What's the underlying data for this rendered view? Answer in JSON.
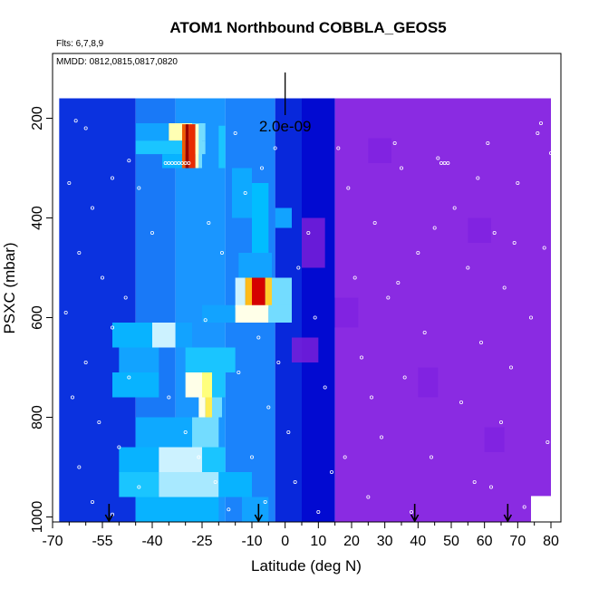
{
  "chart_data": {
    "type": "heatmap",
    "title": "ATOM1 Northbound COBBLA_GEOS5",
    "flights_label": "Flts: 6,7,8,9",
    "dates_label": "MMDD: 0812,0815,0817,0820",
    "xlabel": "Latitude (deg N)",
    "ylabel": "PSXC (mbar)",
    "xlim": [
      -70,
      83
    ],
    "ylim": [
      1010,
      70
    ],
    "y_reversed": true,
    "x_major_ticks": [
      -70,
      -55,
      -40,
      -25,
      -10,
      0,
      10,
      20,
      30,
      40,
      50,
      60,
      70,
      80
    ],
    "x_minor_ticks": [
      -65,
      -60,
      -50,
      -45,
      -35,
      -30,
      -20,
      -15,
      -5,
      5,
      15,
      25,
      35,
      45,
      55,
      65,
      75
    ],
    "y_ticks": [
      200,
      400,
      600,
      800,
      1000
    ],
    "scale_bar_label": "2.0e-09",
    "scale_bar_x": 0,
    "scale_bar_y": [
      86,
      170
    ],
    "profile_arrows_lat": [
      -53,
      -8,
      39,
      67
    ],
    "grid": false,
    "colormap": [
      "#0000cd",
      "#1e90ff",
      "#00bfff",
      "#ffffff",
      "#ffff66",
      "#ffa500",
      "#e00000",
      "#990000"
    ],
    "low_color": "#8a2be2",
    "pressure_levels": [
      185,
      235,
      285,
      335,
      385,
      435,
      485,
      535,
      585,
      635,
      685,
      735,
      785,
      835,
      885,
      935,
      985
    ],
    "data_extent_lat": [
      -68,
      80
    ],
    "cells": [
      {
        "lat": [
          -68,
          -45
        ],
        "p": [
          160,
          1010
        ],
        "v": 0.05
      },
      {
        "lat": [
          -45,
          -33
        ],
        "p": [
          160,
          1010
        ],
        "v": 0.12
      },
      {
        "lat": [
          -33,
          -18
        ],
        "p": [
          160,
          1010
        ],
        "v": 0.16
      },
      {
        "lat": [
          -18,
          -3
        ],
        "p": [
          160,
          1010
        ],
        "v": 0.13
      },
      {
        "lat": [
          -3,
          5
        ],
        "p": [
          160,
          1010
        ],
        "v": 0.04
      },
      {
        "lat": [
          5,
          15
        ],
        "p": [
          160,
          1010
        ],
        "v": 0.01
      },
      {
        "lat": [
          15,
          80
        ],
        "p": [
          160,
          1010
        ],
        "v": 0.0
      },
      {
        "lat": [
          -45,
          -35
        ],
        "p": [
          210,
          245
        ],
        "v": 0.2
      },
      {
        "lat": [
          -35,
          -28
        ],
        "p": [
          210,
          245
        ],
        "v": 0.5
      },
      {
        "lat": [
          -28,
          -24
        ],
        "p": [
          210,
          245
        ],
        "v": 0.35
      },
      {
        "lat": [
          -45,
          -28
        ],
        "p": [
          245,
          272
        ],
        "v": 0.3
      },
      {
        "lat": [
          -28,
          -26
        ],
        "p": [
          245,
          272
        ],
        "v": 0.55
      },
      {
        "lat": [
          -26,
          -24
        ],
        "p": [
          245,
          272
        ],
        "v": 0.35
      },
      {
        "lat": [
          -37,
          -30
        ],
        "p": [
          272,
          300
        ],
        "v": 0.25
      },
      {
        "lat": [
          -31,
          -30
        ],
        "p": [
          212,
          300
        ],
        "v": 0.78
      },
      {
        "lat": [
          -30,
          -29
        ],
        "p": [
          212,
          300
        ],
        "v": 1.0
      },
      {
        "lat": [
          -29,
          -27
        ],
        "p": [
          212,
          300
        ],
        "v": 0.82
      },
      {
        "lat": [
          -27,
          -26
        ],
        "p": [
          212,
          300
        ],
        "v": 0.48
      },
      {
        "lat": [
          -26,
          -25
        ],
        "p": [
          212,
          300
        ],
        "v": 0.35
      },
      {
        "lat": [
          -20,
          -18
        ],
        "p": [
          215,
          300
        ],
        "v": 0.3
      },
      {
        "lat": [
          -16,
          -10
        ],
        "p": [
          300,
          400
        ],
        "v": 0.22
      },
      {
        "lat": [
          -10,
          -5
        ],
        "p": [
          330,
          470
        ],
        "v": 0.28
      },
      {
        "lat": [
          -3,
          2
        ],
        "p": [
          380,
          420
        ],
        "v": 0.2
      },
      {
        "lat": [
          -14,
          -4
        ],
        "p": [
          470,
          520
        ],
        "v": 0.2
      },
      {
        "lat": [
          -15,
          -12
        ],
        "p": [
          520,
          580
        ],
        "v": 0.4
      },
      {
        "lat": [
          -12,
          -10
        ],
        "p": [
          520,
          580
        ],
        "v": 0.68
      },
      {
        "lat": [
          -10,
          -6
        ],
        "p": [
          520,
          580
        ],
        "v": 0.88
      },
      {
        "lat": [
          -6,
          -4
        ],
        "p": [
          520,
          580
        ],
        "v": 0.65
      },
      {
        "lat": [
          -4,
          2
        ],
        "p": [
          520,
          580
        ],
        "v": 0.35
      },
      {
        "lat": [
          -25,
          -15
        ],
        "p": [
          575,
          610
        ],
        "v": 0.2
      },
      {
        "lat": [
          -15,
          -5
        ],
        "p": [
          575,
          610
        ],
        "v": 0.45
      },
      {
        "lat": [
          -5,
          2
        ],
        "p": [
          575,
          610
        ],
        "v": 0.35
      },
      {
        "lat": [
          -52,
          -40
        ],
        "p": [
          610,
          660
        ],
        "v": 0.25
      },
      {
        "lat": [
          -40,
          -33
        ],
        "p": [
          610,
          660
        ],
        "v": 0.4
      },
      {
        "lat": [
          -33,
          -28
        ],
        "p": [
          610,
          660
        ],
        "v": 0.2
      },
      {
        "lat": [
          -50,
          -38
        ],
        "p": [
          660,
          710
        ],
        "v": 0.2
      },
      {
        "lat": [
          -30,
          -15
        ],
        "p": [
          660,
          710
        ],
        "v": 0.3
      },
      {
        "lat": [
          -52,
          -38
        ],
        "p": [
          710,
          760
        ],
        "v": 0.25
      },
      {
        "lat": [
          -30,
          -25
        ],
        "p": [
          710,
          760
        ],
        "v": 0.45
      },
      {
        "lat": [
          -25,
          -22
        ],
        "p": [
          710,
          760
        ],
        "v": 0.55
      },
      {
        "lat": [
          -22,
          -18
        ],
        "p": [
          710,
          760
        ],
        "v": 0.3
      },
      {
        "lat": [
          -26,
          -24
        ],
        "p": [
          760,
          800
        ],
        "v": 0.45
      },
      {
        "lat": [
          -24,
          -22
        ],
        "p": [
          760,
          800
        ],
        "v": 0.6
      },
      {
        "lat": [
          -22,
          -19
        ],
        "p": [
          760,
          800
        ],
        "v": 0.35
      },
      {
        "lat": [
          -45,
          -28
        ],
        "p": [
          800,
          860
        ],
        "v": 0.22
      },
      {
        "lat": [
          -28,
          -20
        ],
        "p": [
          800,
          860
        ],
        "v": 0.35
      },
      {
        "lat": [
          -50,
          -38
        ],
        "p": [
          860,
          910
        ],
        "v": 0.25
      },
      {
        "lat": [
          -38,
          -25
        ],
        "p": [
          860,
          910
        ],
        "v": 0.4
      },
      {
        "lat": [
          -25,
          -18
        ],
        "p": [
          860,
          910
        ],
        "v": 0.3
      },
      {
        "lat": [
          -50,
          -38
        ],
        "p": [
          910,
          960
        ],
        "v": 0.3
      },
      {
        "lat": [
          -38,
          -20
        ],
        "p": [
          910,
          960
        ],
        "v": 0.38
      },
      {
        "lat": [
          -20,
          -10
        ],
        "p": [
          910,
          960
        ],
        "v": 0.25
      },
      {
        "lat": [
          -45,
          -20
        ],
        "p": [
          960,
          1010
        ],
        "v": 0.25
      },
      {
        "lat": [
          -13,
          -5
        ],
        "p": [
          960,
          1010
        ],
        "v": 0.2
      }
    ],
    "purple_patches": [
      {
        "lat": [
          5,
          12
        ],
        "p": [
          400,
          500
        ],
        "shade": "#7a1fd9"
      },
      {
        "lat": [
          15,
          22
        ],
        "p": [
          560,
          620
        ],
        "shade": "#7f22e0"
      },
      {
        "lat": [
          2,
          10
        ],
        "p": [
          640,
          690
        ],
        "shade": "#7a1fd9"
      },
      {
        "lat": [
          25,
          32
        ],
        "p": [
          240,
          290
        ],
        "shade": "#7f22e0"
      },
      {
        "lat": [
          40,
          46
        ],
        "p": [
          700,
          760
        ],
        "shade": "#7f22e0"
      },
      {
        "lat": [
          55,
          62
        ],
        "p": [
          400,
          450
        ],
        "shade": "#7f22e0"
      },
      {
        "lat": [
          60,
          66
        ],
        "p": [
          820,
          870
        ],
        "shade": "#7f22e0"
      }
    ],
    "sample_points": [
      {
        "lat": -36,
        "p": 290
      },
      {
        "lat": -35,
        "p": 290
      },
      {
        "lat": -34,
        "p": 290
      },
      {
        "lat": -33,
        "p": 290
      },
      {
        "lat": -32,
        "p": 290
      },
      {
        "lat": -31,
        "p": 290
      },
      {
        "lat": -30,
        "p": 290
      },
      {
        "lat": -29,
        "p": 290
      },
      {
        "lat": -63,
        "p": 205
      },
      {
        "lat": -60,
        "p": 220
      },
      {
        "lat": -47,
        "p": 285
      },
      {
        "lat": -52,
        "p": 320
      },
      {
        "lat": -65,
        "p": 330
      },
      {
        "lat": -58,
        "p": 380
      },
      {
        "lat": -44,
        "p": 340
      },
      {
        "lat": -40,
        "p": 430
      },
      {
        "lat": -62,
        "p": 470
      },
      {
        "lat": -55,
        "p": 520
      },
      {
        "lat": -48,
        "p": 560
      },
      {
        "lat": -66,
        "p": 590
      },
      {
        "lat": -52,
        "p": 620
      },
      {
        "lat": -60,
        "p": 690
      },
      {
        "lat": -47,
        "p": 720
      },
      {
        "lat": -64,
        "p": 760
      },
      {
        "lat": -56,
        "p": 810
      },
      {
        "lat": -50,
        "p": 860
      },
      {
        "lat": -62,
        "p": 900
      },
      {
        "lat": -44,
        "p": 940
      },
      {
        "lat": -58,
        "p": 970
      },
      {
        "lat": -52,
        "p": 995
      },
      {
        "lat": -35,
        "p": 760
      },
      {
        "lat": -30,
        "p": 830
      },
      {
        "lat": -26,
        "p": 880
      },
      {
        "lat": -21,
        "p": 930
      },
      {
        "lat": -17,
        "p": 985
      },
      {
        "lat": -14,
        "p": 710
      },
      {
        "lat": -19,
        "p": 470
      },
      {
        "lat": -23,
        "p": 410
      },
      {
        "lat": -12,
        "p": 350
      },
      {
        "lat": -7,
        "p": 300
      },
      {
        "lat": -3,
        "p": 260
      },
      {
        "lat": -15,
        "p": 230
      },
      {
        "lat": -24,
        "p": 605
      },
      {
        "lat": -8,
        "p": 640
      },
      {
        "lat": -2,
        "p": 690
      },
      {
        "lat": -5,
        "p": 780
      },
      {
        "lat": 1,
        "p": 830
      },
      {
        "lat": -10,
        "p": 880
      },
      {
        "lat": 3,
        "p": 930
      },
      {
        "lat": -6,
        "p": 970
      },
      {
        "lat": 4,
        "p": 500
      },
      {
        "lat": 7,
        "p": 430
      },
      {
        "lat": 9,
        "p": 600
      },
      {
        "lat": 12,
        "p": 740
      },
      {
        "lat": 14,
        "p": 910
      },
      {
        "lat": 16,
        "p": 260
      },
      {
        "lat": 19,
        "p": 340
      },
      {
        "lat": 21,
        "p": 520
      },
      {
        "lat": 23,
        "p": 680
      },
      {
        "lat": 25,
        "p": 960
      },
      {
        "lat": 27,
        "p": 410
      },
      {
        "lat": 29,
        "p": 840
      },
      {
        "lat": 31,
        "p": 560
      },
      {
        "lat": 33,
        "p": 250
      },
      {
        "lat": 35,
        "p": 300
      },
      {
        "lat": 36,
        "p": 720
      },
      {
        "lat": 38,
        "p": 990
      },
      {
        "lat": 40,
        "p": 470
      },
      {
        "lat": 42,
        "p": 630
      },
      {
        "lat": 44,
        "p": 880
      },
      {
        "lat": 46,
        "p": 280
      },
      {
        "lat": 47,
        "p": 290
      },
      {
        "lat": 48,
        "p": 290
      },
      {
        "lat": 49,
        "p": 290
      },
      {
        "lat": 51,
        "p": 380
      },
      {
        "lat": 53,
        "p": 770
      },
      {
        "lat": 55,
        "p": 500
      },
      {
        "lat": 57,
        "p": 930
      },
      {
        "lat": 59,
        "p": 650
      },
      {
        "lat": 61,
        "p": 250
      },
      {
        "lat": 63,
        "p": 430
      },
      {
        "lat": 65,
        "p": 810
      },
      {
        "lat": 66,
        "p": 540
      },
      {
        "lat": 68,
        "p": 700
      },
      {
        "lat": 70,
        "p": 330
      },
      {
        "lat": 72,
        "p": 980
      },
      {
        "lat": 74,
        "p": 600
      },
      {
        "lat": 76,
        "p": 230
      },
      {
        "lat": 78,
        "p": 460
      },
      {
        "lat": 79,
        "p": 850
      },
      {
        "lat": 77,
        "p": 210
      },
      {
        "lat": 80,
        "p": 270
      },
      {
        "lat": 69,
        "p": 450
      },
      {
        "lat": 58,
        "p": 320
      },
      {
        "lat": 45,
        "p": 420
      },
      {
        "lat": 34,
        "p": 530
      },
      {
        "lat": 26,
        "p": 760
      },
      {
        "lat": 18,
        "p": 880
      },
      {
        "lat": 10,
        "p": 990
      },
      {
        "lat": 62,
        "p": 940
      }
    ]
  }
}
